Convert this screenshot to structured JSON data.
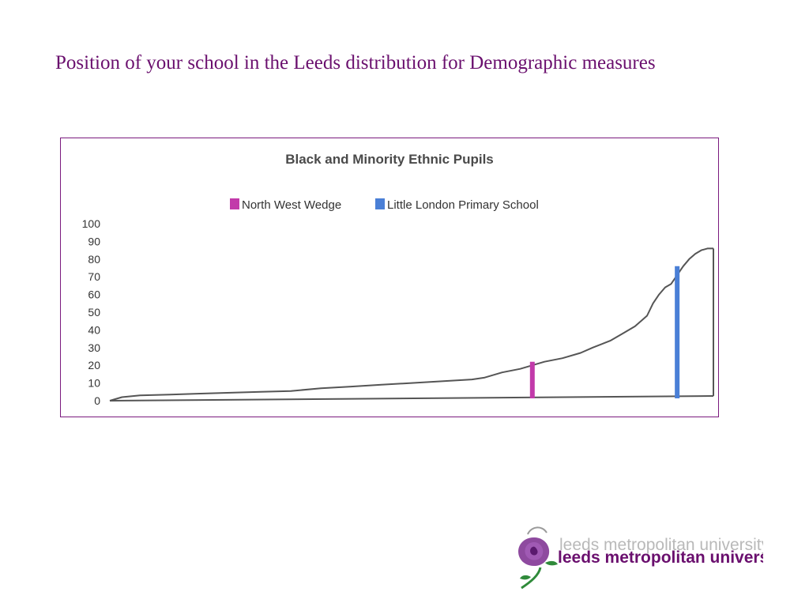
{
  "slide": {
    "title": "Position of your school in the Leeds distribution for Demographic measures"
  },
  "chart_data": {
    "type": "line",
    "title": "Black and Minority Ethnic Pupils",
    "xlabel": "",
    "ylabel": "",
    "ylim": [
      0,
      100
    ],
    "yticks": [
      "100",
      "90",
      "80",
      "70",
      "60",
      "50",
      "40",
      "30",
      "20",
      "10",
      "0"
    ],
    "grid": false,
    "legend_position": "top-center",
    "x": [
      0,
      2,
      5,
      10,
      15,
      20,
      25,
      30,
      35,
      40,
      45,
      50,
      55,
      60,
      62,
      65,
      68,
      70,
      72,
      75,
      78,
      80,
      83,
      85,
      87,
      88,
      89,
      90,
      91,
      92,
      93,
      95,
      96,
      97,
      98,
      99,
      100
    ],
    "series": [
      {
        "values": [
          0,
          2,
          3,
          3.5,
          4,
          4.5,
          5,
          5.5,
          7,
          8,
          9,
          10,
          11,
          12,
          13,
          16,
          18,
          20,
          22,
          24,
          27,
          30,
          34,
          38,
          42,
          45,
          48,
          55,
          60,
          64,
          66,
          76,
          80,
          83,
          85,
          86,
          86
        ],
        "color": "#555555"
      }
    ],
    "markers": [
      {
        "name": "North West Wedge",
        "x": 70,
        "value": 22,
        "color": "#c23aaa"
      },
      {
        "name": "Little London Primary School",
        "x": 94,
        "value": 76,
        "color": "#4a7fd6"
      }
    ]
  },
  "logo": {
    "text": "leeds metropolitan university",
    "color": "#6a0f6e",
    "accent": "#2f8a3a"
  }
}
